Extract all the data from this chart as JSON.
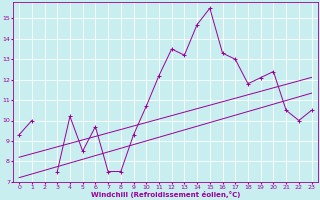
{
  "xlabel": "Windchill (Refroidissement éolien,°C)",
  "x_values": [
    0,
    1,
    2,
    3,
    4,
    5,
    6,
    7,
    8,
    9,
    10,
    11,
    12,
    13,
    14,
    15,
    16,
    17,
    18,
    19,
    20,
    21,
    22,
    23
  ],
  "line1_y": [
    9.3,
    10.0,
    null,
    7.5,
    10.2,
    8.5,
    9.7,
    7.5,
    7.5,
    9.3,
    10.7,
    12.2,
    13.5,
    13.2,
    14.7,
    15.5,
    13.3,
    13.0,
    11.8,
    12.1,
    12.4,
    10.5,
    10.0,
    10.5
  ],
  "line2_y": [
    7.2,
    7.38,
    7.56,
    7.74,
    7.92,
    8.1,
    8.28,
    8.46,
    8.64,
    8.82,
    9.0,
    9.18,
    9.36,
    9.54,
    9.72,
    9.9,
    10.08,
    10.26,
    10.44,
    10.62,
    10.8,
    10.98,
    11.16,
    11.34
  ],
  "line3_y": [
    8.2,
    8.37,
    8.54,
    8.71,
    8.88,
    9.05,
    9.22,
    9.39,
    9.56,
    9.73,
    9.9,
    10.07,
    10.24,
    10.41,
    10.58,
    10.75,
    10.92,
    11.09,
    11.26,
    11.43,
    11.6,
    11.77,
    11.94,
    12.11
  ],
  "line_color": "#990099",
  "bg_color": "#c8eef0",
  "grid_color": "#ffffff",
  "ylim": [
    7,
    15.8
  ],
  "xlim": [
    -0.5,
    23.5
  ],
  "yticks": [
    7,
    8,
    9,
    10,
    11,
    12,
    13,
    14,
    15
  ],
  "xticks": [
    0,
    1,
    2,
    3,
    4,
    5,
    6,
    7,
    8,
    9,
    10,
    11,
    12,
    13,
    14,
    15,
    16,
    17,
    18,
    19,
    20,
    21,
    22,
    23
  ]
}
